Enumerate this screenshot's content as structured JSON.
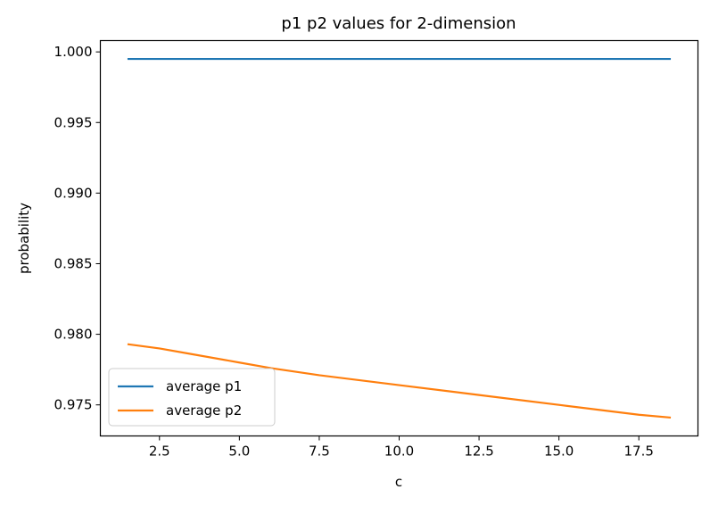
{
  "chart_data": {
    "type": "line",
    "title": "p1 p2 values for 2-dimension",
    "xlabel": "c",
    "ylabel": "probability",
    "xlim": [
      0.65,
      19.35
    ],
    "ylim": [
      0.9728,
      1.0008
    ],
    "xticks": [
      2.5,
      5.0,
      7.5,
      10.0,
      12.5,
      15.0,
      17.5
    ],
    "xtick_labels": [
      "2.5",
      "5.0",
      "7.5",
      "10.0",
      "12.5",
      "15.0",
      "17.5"
    ],
    "yticks": [
      0.975,
      0.98,
      0.985,
      0.99,
      0.995,
      1.0
    ],
    "ytick_labels": [
      "0.975",
      "0.980",
      "0.985",
      "0.990",
      "0.995",
      "1.000"
    ],
    "grid": false,
    "legend_position": "lower-left",
    "series": [
      {
        "name": "average p1",
        "color": "#1f77b4",
        "x": [
          1.5,
          3.0,
          5.0,
          7.5,
          10.0,
          12.5,
          15.0,
          17.5,
          18.5
        ],
        "y": [
          0.9995,
          0.9995,
          0.9995,
          0.9995,
          0.9995,
          0.9995,
          0.9995,
          0.9995,
          0.9995
        ]
      },
      {
        "name": "average p2",
        "color": "#ff7f0e",
        "x": [
          1.5,
          2.5,
          3.5,
          5.0,
          6.0,
          7.5,
          10.0,
          12.5,
          15.0,
          17.5,
          18.5
        ],
        "y": [
          0.9793,
          0.979,
          0.9786,
          0.978,
          0.9776,
          0.9771,
          0.9764,
          0.9757,
          0.975,
          0.9743,
          0.9741
        ]
      }
    ]
  }
}
